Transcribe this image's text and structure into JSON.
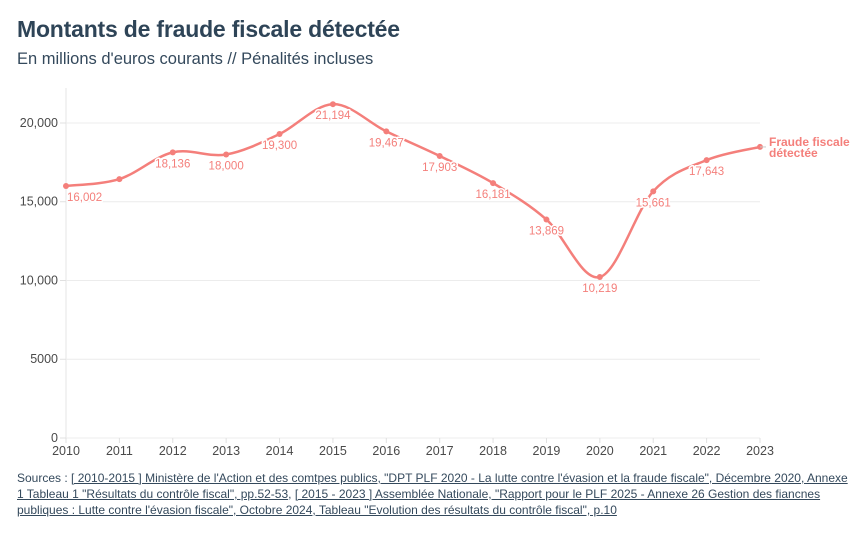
{
  "header": {
    "title": "Montants de fraude fiscale détectée",
    "subtitle": "En millions d'euros courants // Pénalités incluses"
  },
  "chart_data": {
    "type": "line",
    "title": "Montants de fraude fiscale détectée",
    "subtitle": "En millions d'euros courants // Pénalités incluses",
    "xlabel": "",
    "ylabel": "",
    "x": [
      2010,
      2011,
      2012,
      2013,
      2014,
      2015,
      2016,
      2017,
      2018,
      2019,
      2020,
      2021,
      2022,
      2023
    ],
    "x_tick_labels": [
      "2010",
      "2011",
      "2012",
      "2013",
      "2014",
      "2015",
      "2016",
      "2017",
      "2018",
      "2019",
      "2020",
      "2021",
      "2022",
      "2023"
    ],
    "ylim": [
      0,
      22000
    ],
    "y_ticks": [
      0,
      5000,
      10000,
      15000,
      20000
    ],
    "y_tick_labels": [
      "0",
      "5000",
      "10,000",
      "15,000",
      "20,000"
    ],
    "grid": true,
    "legend": "inline-right",
    "series": [
      {
        "name": "Fraude fiscale détectée",
        "name_lines": [
          "Fraude fiscale",
          "détectée"
        ],
        "color": "#f47f7b",
        "values": [
          16002,
          16440,
          18136,
          18000,
          19300,
          21194,
          19467,
          17903,
          16181,
          13869,
          10219,
          15661,
          17643,
          18480
        ],
        "data_labels": [
          "16,002",
          "",
          "18,136",
          "18,000",
          "19,300",
          "21,194",
          "19,467",
          "17,903",
          "16,181",
          "13,869",
          "10,219",
          "15,661",
          "17,643",
          ""
        ]
      }
    ]
  },
  "footer": {
    "prefix": "Sources : ",
    "links": [
      "[ 2010-2015 ] Ministère de l'Action et des comtpes publics, \"DPT PLF 2020 - La lutte contre l'évasion et la fraude fiscale\", Décembre 2020, Annexe 1 Tableau 1 \"Résultats du contrôle fiscal\", pp.52-53",
      "[ 2015 - 2023 ] Assemblée Nationale, \"Rapport pour le PLF 2025 - Annexe 26 Gestion des fiancnes publiques : Lutte contre l'évasion fiscale\", Octobre 2024, Tableau \"Evolution des résultats du contrôle fiscal\", p.10"
    ],
    "separator": ", "
  }
}
